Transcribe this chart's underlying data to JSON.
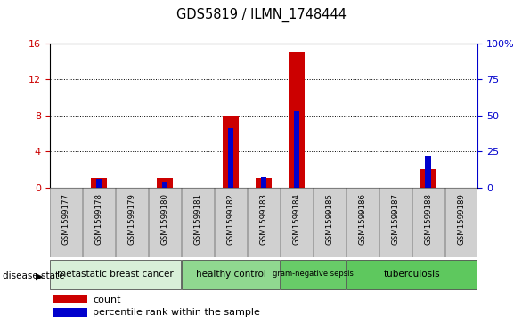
{
  "title": "GDS5819 / ILMN_1748444",
  "samples": [
    "GSM1599177",
    "GSM1599178",
    "GSM1599179",
    "GSM1599180",
    "GSM1599181",
    "GSM1599182",
    "GSM1599183",
    "GSM1599184",
    "GSM1599185",
    "GSM1599186",
    "GSM1599187",
    "GSM1599188",
    "GSM1599189"
  ],
  "count_values": [
    0,
    1,
    0,
    1,
    0,
    8,
    1,
    15,
    0,
    0,
    0,
    2,
    0
  ],
  "percentile_values": [
    0,
    6,
    0,
    4,
    0,
    41,
    7,
    53,
    0,
    0,
    0,
    22,
    0
  ],
  "count_color": "#cc0000",
  "percentile_color": "#0000cc",
  "disease_groups": [
    {
      "label": "metastatic breast cancer",
      "start": 0,
      "end": 4,
      "color": "#d8f0d8"
    },
    {
      "label": "healthy control",
      "start": 4,
      "end": 7,
      "color": "#90d890"
    },
    {
      "label": "gram-negative sepsis",
      "start": 7,
      "end": 9,
      "color": "#68cc68"
    },
    {
      "label": "tuberculosis",
      "start": 9,
      "end": 13,
      "color": "#5ec85e"
    }
  ],
  "ylim_left": [
    0,
    16
  ],
  "ylim_right": [
    0,
    100
  ],
  "yticks_left": [
    0,
    4,
    8,
    12,
    16
  ],
  "ytick_labels_left": [
    "0",
    "4",
    "8",
    "12",
    "16"
  ],
  "yticks_right": [
    0,
    25,
    50,
    75,
    100
  ],
  "ytick_labels_right": [
    "0",
    "25",
    "50",
    "75",
    "100%"
  ],
  "disease_state_label": "disease state",
  "legend_count": "count",
  "legend_percentile": "percentile rank within the sample",
  "bar_width": 0.5,
  "percentile_bar_width": 0.18,
  "count_color_left": "#cc0000",
  "count_color_right": "#0000cc",
  "sample_cell_color": "#d0d0d0",
  "plot_bg_color": "#ffffff"
}
